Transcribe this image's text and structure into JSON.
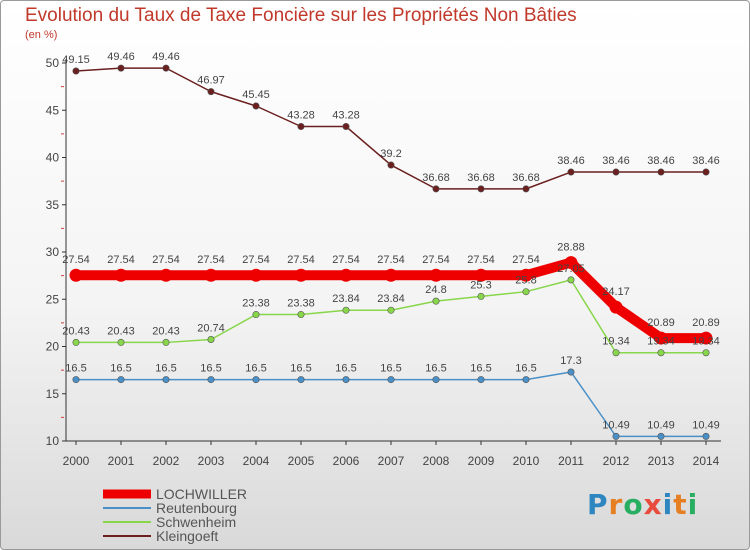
{
  "chart_data": {
    "type": "line",
    "title": "Evolution du Taux de Taxe Foncière sur les Propriétés Non Bâties",
    "subtitle": "(en %)",
    "x": [
      "2000",
      "2001",
      "2002",
      "2003",
      "2004",
      "2005",
      "2006",
      "2007",
      "2008",
      "2009",
      "2010",
      "2011",
      "2012",
      "2013",
      "2014"
    ],
    "ylim": [
      10,
      50
    ],
    "yticks": [
      10,
      15,
      20,
      25,
      30,
      35,
      40,
      45,
      50
    ],
    "grid": false,
    "legend_position": "bottom-left",
    "series": [
      {
        "name": "LOCHWILLER",
        "color": "#ee0000",
        "values": [
          27.54,
          27.54,
          27.54,
          27.54,
          27.54,
          27.54,
          27.54,
          27.54,
          27.54,
          27.54,
          27.54,
          28.88,
          24.17,
          20.89,
          20.89
        ]
      },
      {
        "name": "Reutenbourg",
        "color": "#4a90c8",
        "values": [
          16.5,
          16.5,
          16.5,
          16.5,
          16.5,
          16.5,
          16.5,
          16.5,
          16.5,
          16.5,
          16.5,
          17.3,
          10.49,
          10.49,
          10.49
        ]
      },
      {
        "name": "Schwenheim",
        "color": "#88d64a",
        "values": [
          20.43,
          20.43,
          20.43,
          20.74,
          23.38,
          23.38,
          23.84,
          23.84,
          24.8,
          25.3,
          25.8,
          27.05,
          19.34,
          19.34,
          19.34
        ]
      },
      {
        "name": "Kleingoeft",
        "color": "#6b1f1f",
        "values": [
          49.15,
          49.46,
          49.46,
          46.97,
          45.45,
          43.28,
          43.28,
          39.2,
          36.68,
          36.68,
          36.68,
          38.46,
          38.46,
          38.46,
          38.46
        ]
      }
    ]
  },
  "logo": {
    "text": "Proxiti",
    "colors": [
      "#2e86c1",
      "#e67e22",
      "#27ae60",
      "#e74c3c"
    ]
  }
}
